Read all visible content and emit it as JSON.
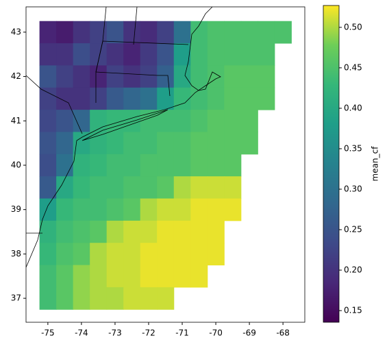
{
  "chart_data": {
    "type": "heatmap",
    "colormap": "viridis",
    "x": [
      -75,
      -74.5,
      -74,
      -73.5,
      -73,
      -72.5,
      -72,
      -71.5,
      -71,
      -70.5,
      -70,
      -69.5,
      -69,
      -68.5,
      -68
    ],
    "y": [
      43,
      42.5,
      42,
      41.5,
      41,
      40.5,
      40,
      39.5,
      39,
      38.5,
      38,
      37.5,
      37
    ],
    "values": [
      [
        0.18,
        0.17,
        0.2,
        0.22,
        0.25,
        0.2,
        0.19,
        0.22,
        0.3,
        0.44,
        0.45,
        0.45,
        0.45,
        0.45,
        0.45
      ],
      [
        0.2,
        0.2,
        0.24,
        0.22,
        0.2,
        0.18,
        0.21,
        0.25,
        0.38,
        0.44,
        0.45,
        0.45,
        0.45,
        0.45,
        null
      ],
      [
        0.25,
        0.22,
        0.2,
        0.18,
        0.22,
        0.2,
        0.22,
        0.27,
        0.4,
        0.44,
        0.45,
        0.46,
        0.46,
        0.46,
        null
      ],
      [
        0.22,
        0.2,
        0.2,
        0.22,
        0.26,
        0.28,
        0.3,
        0.38,
        0.43,
        0.44,
        0.45,
        0.46,
        0.46,
        0.46,
        null
      ],
      [
        0.23,
        0.25,
        0.28,
        0.42,
        0.43,
        0.43,
        0.44,
        0.44,
        0.44,
        0.45,
        0.46,
        0.46,
        0.46,
        null,
        null
      ],
      [
        0.25,
        0.28,
        0.4,
        0.42,
        0.43,
        0.44,
        0.44,
        0.45,
        0.45,
        0.46,
        0.46,
        0.46,
        0.46,
        null,
        null
      ],
      [
        0.24,
        0.3,
        0.42,
        0.43,
        0.44,
        0.44,
        0.45,
        0.45,
        0.45,
        0.46,
        0.46,
        0.46,
        null,
        null,
        null
      ],
      [
        0.26,
        0.4,
        0.43,
        0.44,
        0.44,
        0.45,
        0.45,
        0.46,
        0.5,
        0.51,
        0.51,
        0.51,
        null,
        null,
        null
      ],
      [
        0.38,
        0.43,
        0.44,
        0.44,
        0.45,
        0.46,
        0.5,
        0.51,
        0.51,
        0.52,
        0.52,
        0.52,
        null,
        null,
        null
      ],
      [
        0.42,
        0.44,
        0.45,
        0.46,
        0.5,
        0.51,
        0.51,
        0.52,
        0.52,
        0.52,
        0.52,
        null,
        null,
        null,
        null
      ],
      [
        0.43,
        0.45,
        0.46,
        0.5,
        0.51,
        0.51,
        0.52,
        0.52,
        0.52,
        0.52,
        0.52,
        null,
        null,
        null,
        null
      ],
      [
        0.44,
        0.46,
        0.49,
        0.5,
        0.51,
        0.51,
        0.52,
        0.52,
        0.52,
        0.52,
        null,
        null,
        null,
        null,
        null
      ],
      [
        0.44,
        0.46,
        0.49,
        0.5,
        0.5,
        0.51,
        0.51,
        0.51,
        null,
        null,
        null,
        null,
        null,
        null,
        null
      ]
    ],
    "xlim": [
      -75.65,
      -67.35
    ],
    "ylim": [
      36.46,
      43.57
    ],
    "xticks": [
      -75,
      -74,
      -73,
      -72,
      -71,
      -70,
      -69,
      -68
    ],
    "yticks": [
      37,
      38,
      39,
      40,
      41,
      42,
      43
    ],
    "colorbar_label": "mean_cf",
    "clim": [
      0.1356,
      0.527
    ],
    "cticks": [
      0.15,
      0.2,
      0.25,
      0.3,
      0.35,
      0.4,
      0.45,
      0.5
    ]
  }
}
